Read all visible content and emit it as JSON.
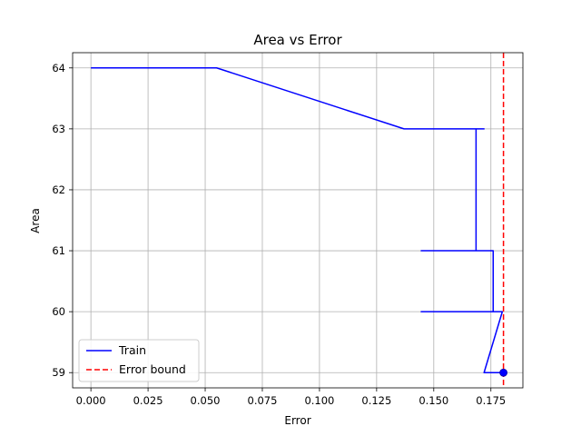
{
  "chart_data": {
    "type": "line",
    "title": "Area vs Error",
    "xlabel": "Error",
    "ylabel": "Area",
    "xlim": [
      -0.008,
      0.189
    ],
    "ylim": [
      58.75,
      64.25
    ],
    "xticks": [
      "0.000",
      "0.025",
      "0.050",
      "0.075",
      "0.100",
      "0.125",
      "0.150",
      "0.175"
    ],
    "yticks": [
      "59",
      "60",
      "61",
      "62",
      "63",
      "64"
    ],
    "grid": true,
    "legend": {
      "placement": "lower-left",
      "entries": [
        "Train",
        "Error bound"
      ]
    },
    "series": [
      {
        "name": "Train",
        "color": "#0000ff",
        "style": "solid",
        "points": [
          [
            0.0,
            64
          ],
          [
            0.055,
            64
          ],
          [
            0.137,
            63
          ],
          [
            0.172,
            63
          ],
          [
            0.1685,
            63
          ],
          [
            0.1685,
            61
          ],
          [
            0.1445,
            61
          ],
          [
            0.176,
            61
          ],
          [
            0.176,
            60
          ],
          [
            0.1445,
            60
          ],
          [
            0.18,
            60
          ],
          [
            0.172,
            59
          ],
          [
            0.18,
            59
          ]
        ]
      },
      {
        "name": "Error bound",
        "color": "#ff0000",
        "style": "dashed",
        "x": 0.1805
      }
    ],
    "marker": {
      "x": 0.1805,
      "y": 59,
      "color": "#0000ff"
    }
  }
}
